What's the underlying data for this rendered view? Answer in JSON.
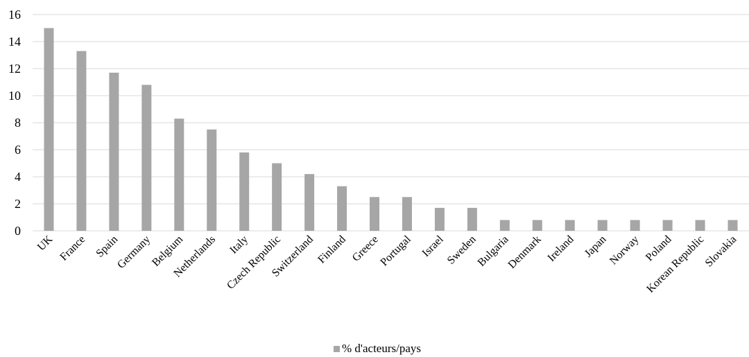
{
  "chart_data": {
    "type": "bar",
    "categories": [
      "UK",
      "France",
      "Spain",
      "Germany",
      "Belgium",
      "Netherlands",
      "Italy",
      "Czech Republic",
      "Switzerland",
      "Finland",
      "Greece",
      "Portugal",
      "Israel",
      "Sweden",
      "Bulgaria",
      "Denmark",
      "Ireland",
      "Japan",
      "Norway",
      "Poland",
      "Korean Republic",
      "Slovakia"
    ],
    "series": [
      {
        "name": "% d'acteurs/pays",
        "values": [
          15.0,
          13.3,
          11.7,
          10.8,
          8.3,
          7.5,
          5.8,
          5.0,
          4.2,
          3.3,
          2.5,
          2.5,
          1.7,
          1.7,
          0.8,
          0.8,
          0.8,
          0.8,
          0.8,
          0.8,
          0.8,
          0.8
        ],
        "color": "#a6a6a6"
      }
    ],
    "title": "",
    "xlabel": "",
    "ylabel": "",
    "ylim": [
      0,
      16
    ],
    "yticks": [
      "0",
      "2",
      "4",
      "6",
      "8",
      "10",
      "12",
      "14",
      "16"
    ],
    "grid": "horizontal",
    "legend_position": "bottom",
    "gridline_color": "#d9d9d9"
  }
}
